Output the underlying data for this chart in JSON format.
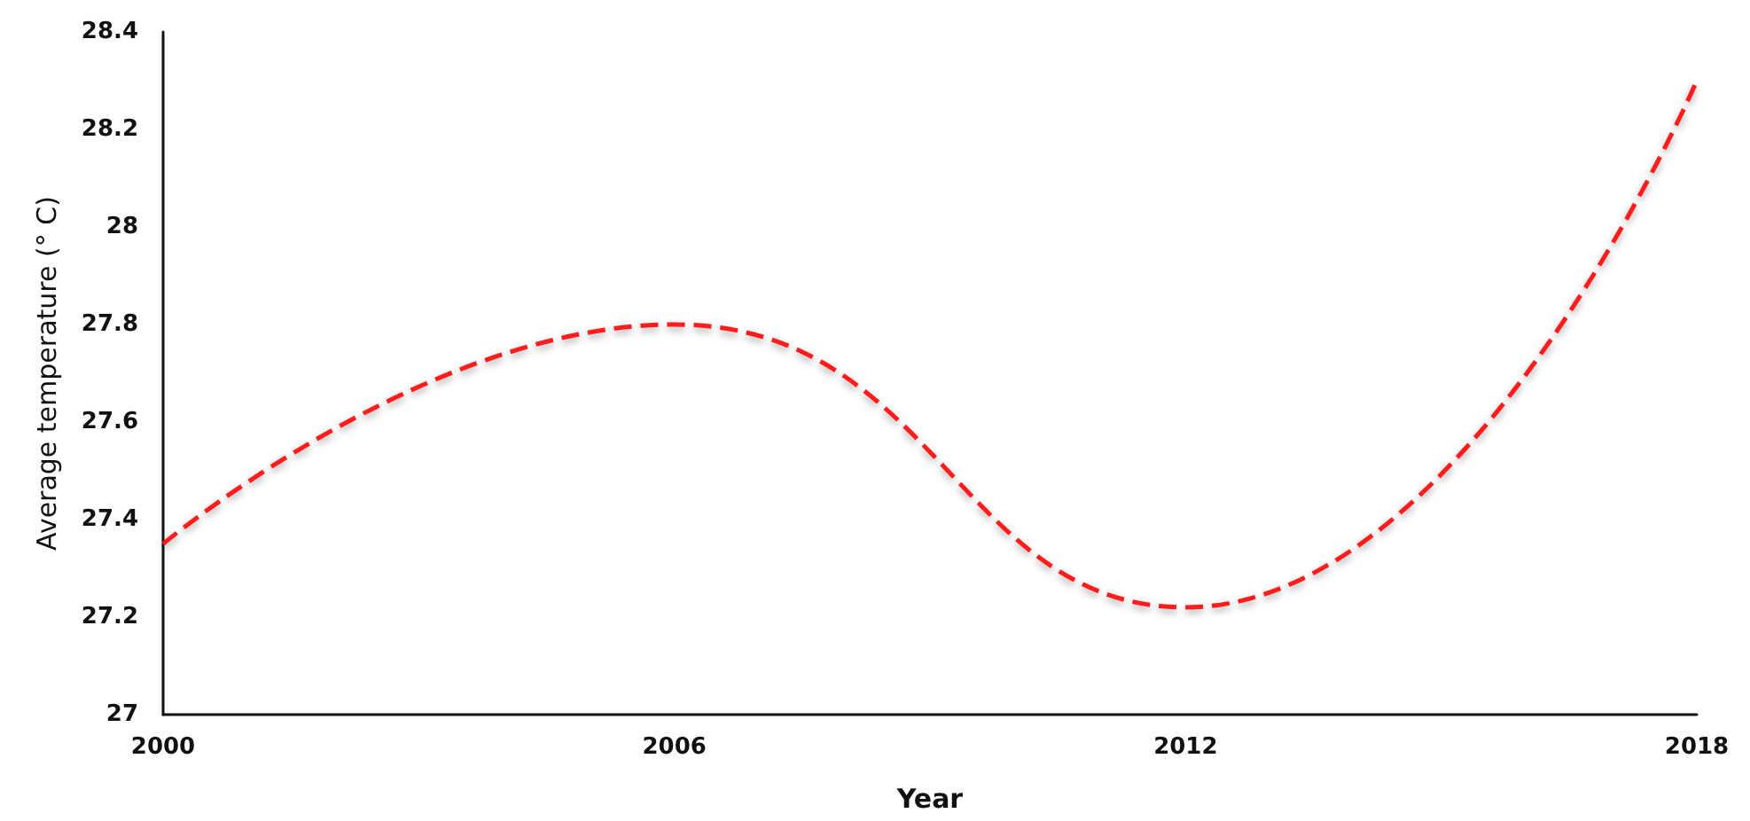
{
  "chart_data": {
    "type": "line",
    "xlabel": "Year",
    "ylabel": "Average temperature (° C)",
    "x": [
      2000,
      2006,
      2012,
      2018
    ],
    "series": [
      {
        "color": "#ff1a1a",
        "values": [
          27.35,
          27.8,
          27.22,
          28.3
        ]
      }
    ],
    "xlim": [
      2000,
      2018
    ],
    "xticks": [
      2000,
      2006,
      2012,
      2018
    ],
    "ylim": [
      27,
      28.4
    ],
    "yticks": [
      27,
      27.2,
      27.4,
      27.6,
      27.8,
      28,
      28.2,
      28.4
    ],
    "grid": false,
    "marker": "none",
    "line_style": "dashed"
  }
}
